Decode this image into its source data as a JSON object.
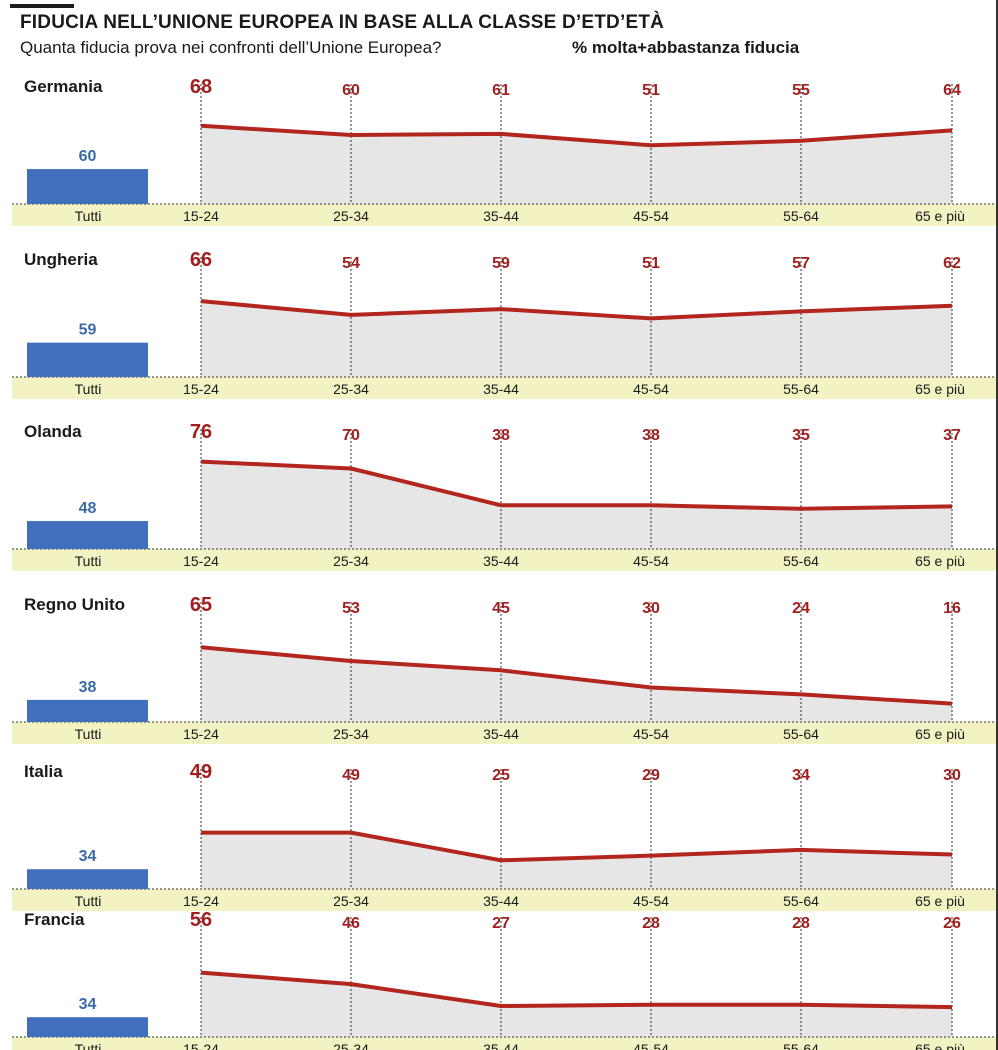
{
  "title": "FIDUCIA NELL’UNIONE EUROPEA IN BASE ALLA CLASSE D’ETD’ETÀ",
  "subtitle": "Quanta fiducia prova nei confronti dell’Unione Europea?",
  "measure": "% molta+abbastanza fiducia",
  "colors": {
    "line": "#b3261e",
    "label_red": "#a11f1f",
    "bar_blue": "#3f6fbd",
    "label_blue": "#3c6aa8",
    "area": "#e6e6e6",
    "axis_band": "#f2f2c2"
  },
  "chart_data": {
    "type": "area",
    "total_label": "Tutti",
    "categories": [
      "15-24",
      "25-34",
      "35-44",
      "45-54",
      "55-64",
      "65 e più"
    ],
    "ylim": [
      0,
      100
    ],
    "grid": "dotted vertical lines at each age group",
    "series": [
      {
        "name": "Germania",
        "total": 60,
        "values": [
          68,
          60,
          61,
          51,
          55,
          64
        ]
      },
      {
        "name": "Ungheria",
        "total": 59,
        "values": [
          66,
          54,
          59,
          51,
          57,
          62
        ]
      },
      {
        "name": "Olanda",
        "total": 48,
        "values": [
          76,
          70,
          38,
          38,
          35,
          37
        ]
      },
      {
        "name": "Regno Unito",
        "total": 38,
        "values": [
          65,
          53,
          45,
          30,
          24,
          16
        ]
      },
      {
        "name": "Italia",
        "total": 34,
        "values": [
          49,
          49,
          25,
          29,
          34,
          30
        ]
      },
      {
        "name": "Francia",
        "total": 34,
        "values": [
          56,
          46,
          27,
          28,
          28,
          26
        ]
      }
    ]
  }
}
